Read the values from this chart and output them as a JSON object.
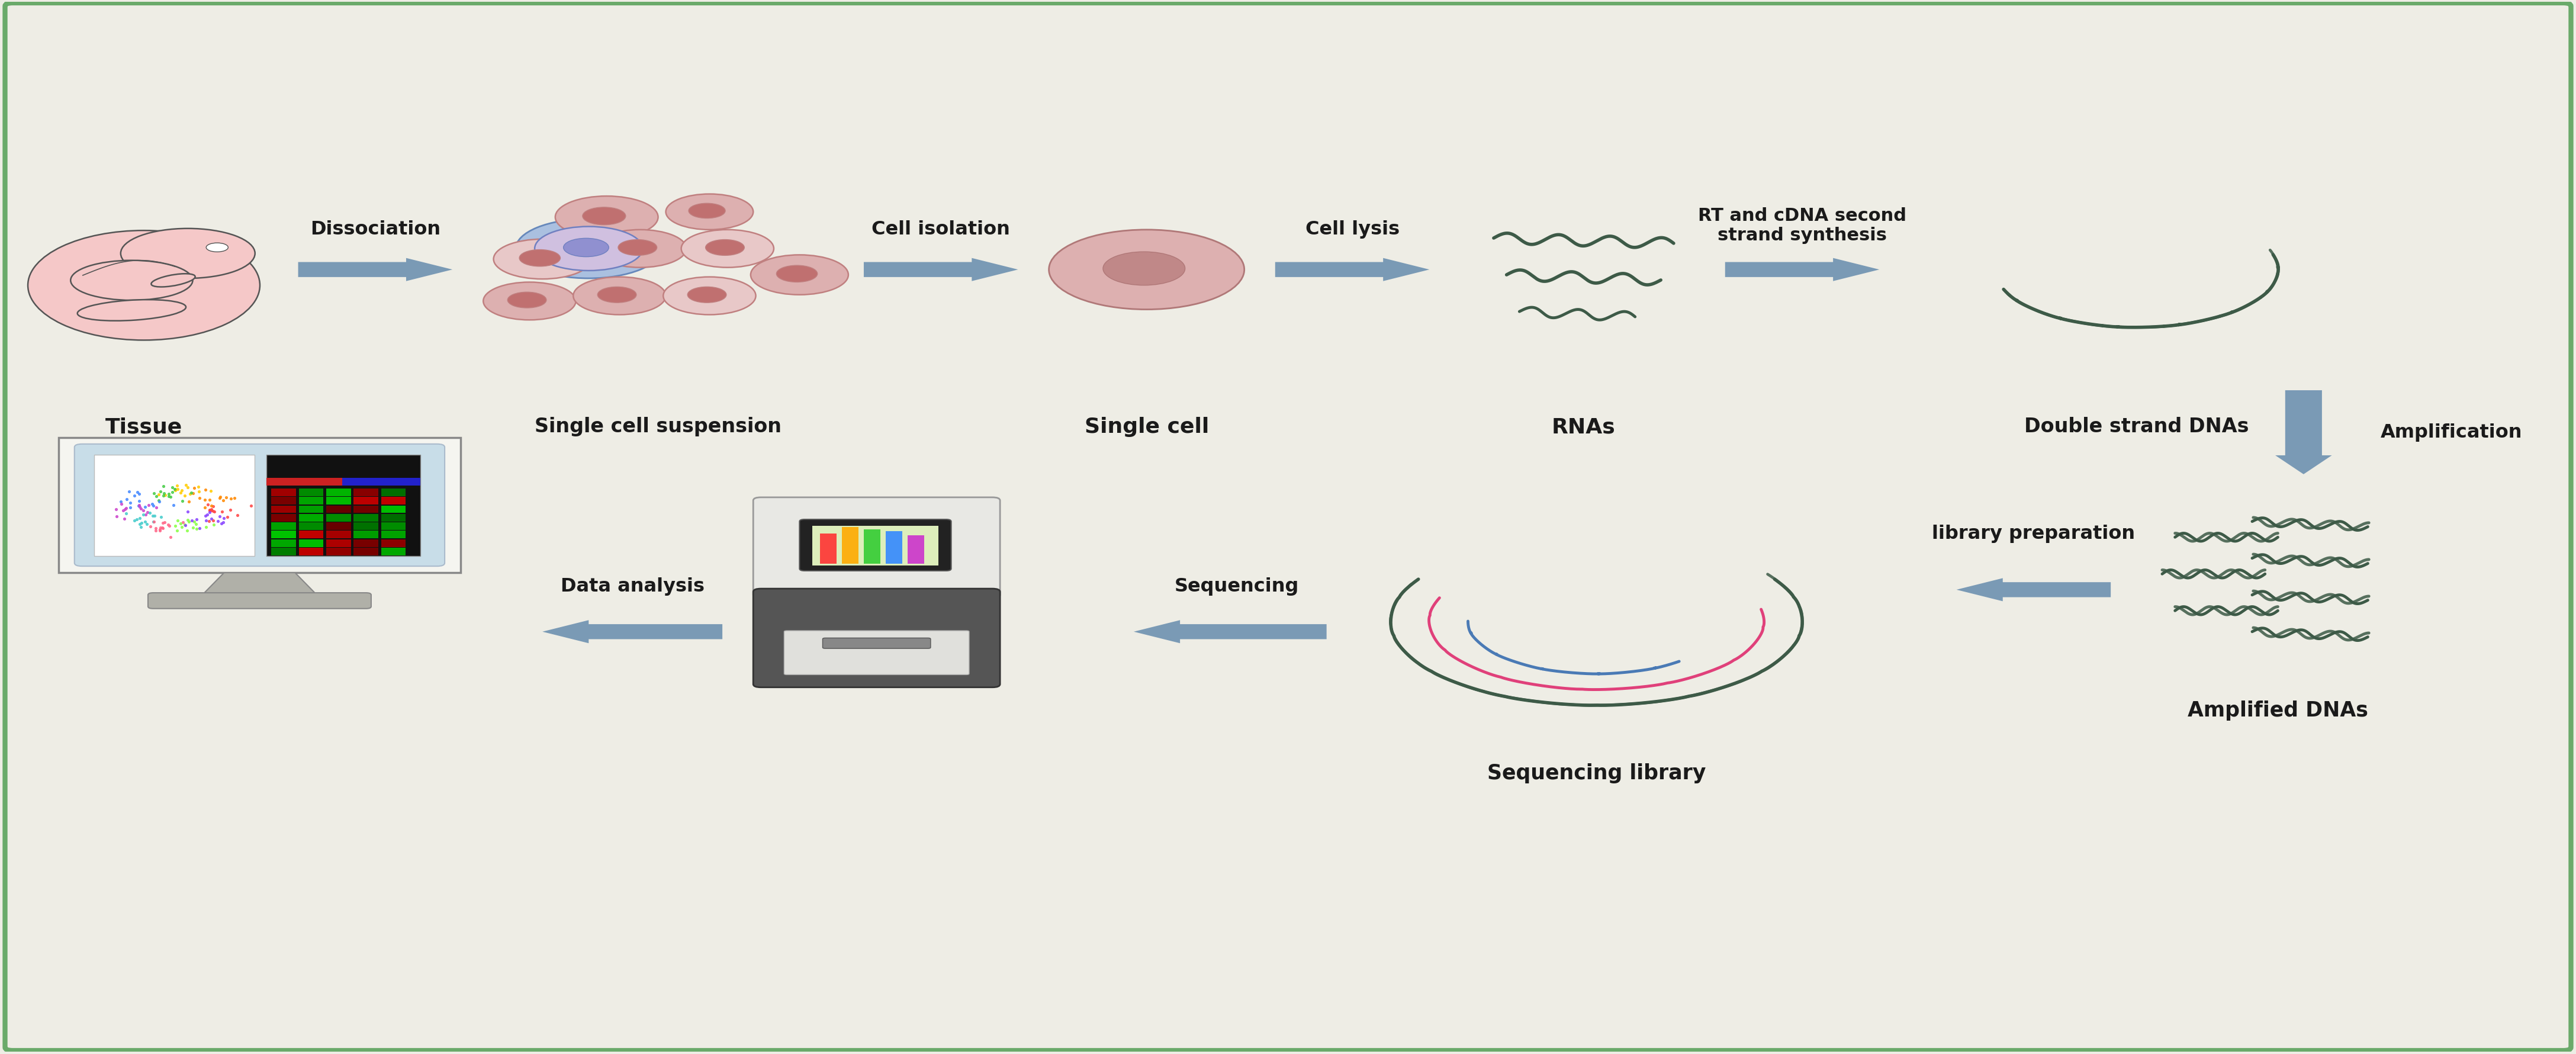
{
  "bg_color": "#eeede5",
  "border_color": "#6aaa6a",
  "arrow_color": "#7a9ab5",
  "text_color": "#1a1a1a",
  "labels": {
    "tissue": "Tissue",
    "single_cell_suspension": "Single cell suspension",
    "single_cell": "Single cell",
    "rnas": "RNAs",
    "rt_cdna": "RT and cDNA second\nstrand synthesis",
    "double_strand": "Double strand DNAs",
    "amplification": "Amplification",
    "library_prep": "library preparation",
    "amplified_dnas": "Amplified DNAs",
    "sequencing_library": "Sequencing library",
    "sequencing": "Sequencing",
    "data_analysis": "Data analysis",
    "dissociation": "Dissociation",
    "cell_isolation": "Cell isolation",
    "cell_lysis": "Cell lysis"
  },
  "dna_color": "#3d5a47",
  "dna_blue": "#4a7ab5",
  "dna_pink": "#e0407a",
  "embryo_fill": "#f5c8c8",
  "embryo_outline": "#555555"
}
